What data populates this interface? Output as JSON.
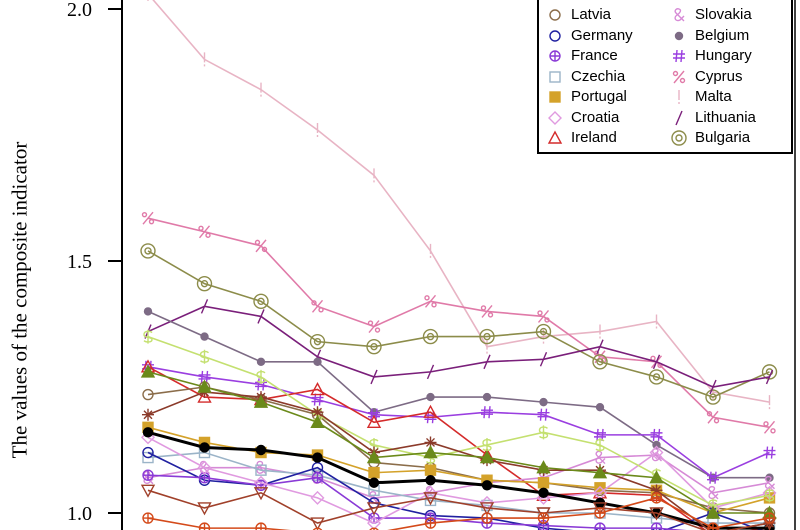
{
  "chart_data": {
    "type": "line",
    "title": "",
    "xlabel": "",
    "ylabel": "The values of the composite indicator",
    "ylim": [
      0.99,
      2.02
    ],
    "yticks": [
      "1.0",
      "1.5",
      "2.0"
    ],
    "ytick_values": [
      1.0,
      1.5,
      2.0
    ],
    "x": [
      1,
      2,
      3,
      4,
      5,
      6,
      7,
      8,
      9,
      10,
      11,
      12
    ],
    "legend_position": "top-right",
    "series": [
      {
        "name": "Malta",
        "marker": "!",
        "color": "#e8b4c4",
        "values": [
          2.03,
          1.9,
          1.84,
          1.76,
          1.67,
          1.52,
          1.33,
          1.35,
          1.36,
          1.38,
          1.24,
          1.22
        ]
      },
      {
        "name": "Cyprus",
        "marker": "%",
        "color": "#e07aa8",
        "values": [
          1.585,
          1.558,
          1.53,
          1.41,
          1.37,
          1.42,
          1.4,
          1.39,
          1.31,
          1.3,
          1.19,
          1.17
        ]
      },
      {
        "name": "Bulgaria",
        "marker": "@",
        "color": "#8c8c4a",
        "values": [
          1.52,
          1.455,
          1.42,
          1.34,
          1.33,
          1.35,
          1.35,
          1.36,
          1.3,
          1.27,
          1.23,
          1.28
        ]
      },
      {
        "name": "Lithuania",
        "marker": "/",
        "color": "#7a1f7a",
        "values": [
          1.36,
          1.41,
          1.39,
          1.31,
          1.27,
          1.28,
          1.3,
          1.305,
          1.33,
          1.3,
          1.25,
          1.27
        ]
      },
      {
        "name": "Belgium",
        "marker": "•",
        "color": "#7d6b85",
        "values": [
          1.4,
          1.35,
          1.3,
          1.3,
          1.2,
          1.23,
          1.23,
          1.22,
          1.21,
          1.135,
          1.07,
          1.07
        ]
      },
      {
        "name": "Hungary",
        "marker": "#",
        "color": "#9a3ee0",
        "values": [
          1.29,
          1.27,
          1.255,
          1.225,
          1.195,
          1.19,
          1.2,
          1.195,
          1.155,
          1.155,
          1.07,
          1.12
        ]
      },
      {
        "name": "Ireland",
        "marker": "△",
        "color": "#d42b2b",
        "values": [
          1.29,
          1.23,
          1.225,
          1.245,
          1.18,
          1.2,
          1.115,
          1.035,
          1.04,
          1.035,
          0.955,
          0.97
        ]
      },
      {
        "name": "Slovakia",
        "marker": "&",
        "color": "#d68ad6",
        "values": [
          1.07,
          1.09,
          1.09,
          1.07,
          1.03,
          1.04,
          1.06,
          1.07,
          1.11,
          1.115,
          1.04,
          1.06
        ]
      },
      {
        "name": "Latvia",
        "marker": "○",
        "color": "#8b6d4a",
        "values": [
          1.235,
          1.25,
          1.225,
          1.195,
          1.1,
          1.09,
          1.065,
          1.06,
          1.045,
          1.04,
          1.01,
          1.0
        ]
      },
      {
        "name": "Portugal",
        "marker": "■",
        "color": "#d4a22a",
        "values": [
          1.17,
          1.14,
          1.12,
          1.115,
          1.08,
          1.085,
          1.065,
          1.06,
          1.05,
          1.045,
          1.0,
          1.03
        ]
      },
      {
        "name": "Czechia",
        "marker": "□",
        "color": "#9bb4c8",
        "values": [
          1.11,
          1.12,
          1.085,
          1.075,
          1.045,
          1.025,
          1.015,
          1.0,
          1.0,
          0.99,
          0.98,
          0.98
        ]
      },
      {
        "name": "Germany",
        "marker": "○",
        "color": "#2020a0",
        "values": [
          1.12,
          1.065,
          1.055,
          1.09,
          1.02,
          0.995,
          0.99,
          0.97,
          0.96,
          0.96,
          1.0,
          0.96
        ]
      },
      {
        "name": "France",
        "marker": "⊕",
        "color": "#8a3ad6",
        "values": [
          1.075,
          1.07,
          1.055,
          1.07,
          0.99,
          0.99,
          0.98,
          0.975,
          0.97,
          0.97,
          0.96,
          0.96
        ]
      },
      {
        "name": "Croatia",
        "marker": "◇",
        "color": "#e09ae0",
        "values": [
          1.15,
          1.09,
          1.06,
          1.03,
          0.98,
          1.04,
          1.02,
          1.03,
          1.04,
          1.12,
          1.01,
          1.04
        ]
      },
      {
        "name": "",
        "marker": "$",
        "color": "#c4e070",
        "values": [
          1.35,
          1.31,
          1.27,
          1.195,
          1.135,
          1.11,
          1.135,
          1.16,
          1.135,
          1.075,
          1.015,
          1.035
        ]
      },
      {
        "name": "",
        "marker": "●",
        "color": "#000000",
        "values": [
          1.16,
          1.13,
          1.125,
          1.11,
          1.06,
          1.065,
          1.055,
          1.04,
          1.02,
          1.0,
          0.97,
          0.97
        ]
      },
      {
        "name": "",
        "marker": "*",
        "color": "#8b3a2a",
        "values": [
          1.195,
          1.24,
          1.23,
          1.2,
          1.12,
          1.14,
          1.105,
          1.085,
          1.085,
          1.045,
          0.96,
          0.98
        ]
      },
      {
        "name": "",
        "marker": "▽",
        "color": "#a0402a",
        "values": [
          1.045,
          1.01,
          1.04,
          0.98,
          1.01,
          1.03,
          1.01,
          1.0,
          1.01,
          1.0,
          0.96,
          0.98
        ]
      },
      {
        "name": "",
        "marker": "▲",
        "color": "#6b8a1a",
        "values": [
          1.28,
          1.25,
          1.22,
          1.18,
          1.11,
          1.12,
          1.11,
          1.09,
          1.08,
          1.07,
          1.0,
          1.0
        ]
      },
      {
        "name": "",
        "marker": "⊕",
        "color": "#d44a1a",
        "values": [
          0.99,
          0.97,
          0.97,
          0.96,
          0.96,
          0.98,
          0.99,
          0.99,
          1.0,
          1.03,
          0.97,
          0.99
        ]
      }
    ],
    "legend": [
      {
        "label": "Latvia",
        "marker": "○",
        "color": "#8b6d4a"
      },
      {
        "label": "Germany",
        "marker": "○",
        "color": "#2020a0"
      },
      {
        "label": "France",
        "marker": "⊕",
        "color": "#8a3ad6"
      },
      {
        "label": "Czechia",
        "marker": "□",
        "color": "#9bb4c8"
      },
      {
        "label": "Portugal",
        "marker": "■",
        "color": "#d4a22a"
      },
      {
        "label": "Croatia",
        "marker": "◇",
        "color": "#e09ae0"
      },
      {
        "label": "Ireland",
        "marker": "△",
        "color": "#d42b2b"
      },
      {
        "label": "Slovakia",
        "marker": "&",
        "color": "#d68ad6"
      },
      {
        "label": "Belgium",
        "marker": "•",
        "color": "#7d6b85"
      },
      {
        "label": "Hungary",
        "marker": "#",
        "color": "#9a3ee0"
      },
      {
        "label": "Cyprus",
        "marker": "%",
        "color": "#e07aa8"
      },
      {
        "label": "Malta",
        "marker": "!",
        "color": "#e8b4c4"
      },
      {
        "label": "Lithuania",
        "marker": "/",
        "color": "#7a1f7a"
      },
      {
        "label": "Bulgaria",
        "marker": "@",
        "color": "#8c8c4a"
      }
    ]
  }
}
